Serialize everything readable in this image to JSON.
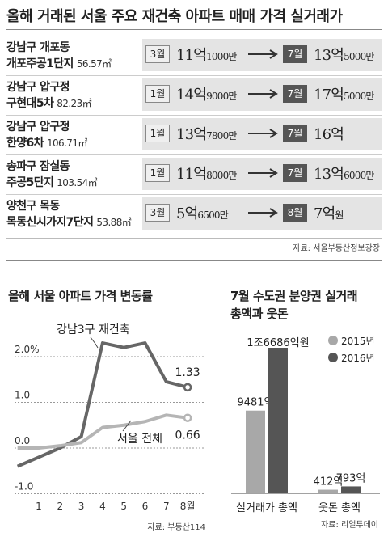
{
  "table": {
    "title": "올해 거래된 서울 주요 재건축 아파트 매매 가격 실거래가",
    "rows": [
      {
        "district": "강남구 개포동",
        "complex": "개포주공1단지",
        "area": "56.57㎡",
        "before_month": "3월",
        "before_main": "11억",
        "before_sub": "1000만",
        "after_month": "7월",
        "after_main": "13억",
        "after_sub": "5000만"
      },
      {
        "district": "강남구 압구정",
        "complex": "구현대5차",
        "area": "82.23㎡",
        "before_month": "1월",
        "before_main": "14억",
        "before_sub": "9000만",
        "after_month": "7월",
        "after_main": "17억",
        "after_sub": "5000만"
      },
      {
        "district": "강남구 압구정",
        "complex": "한양6차",
        "area": "106.71㎡",
        "before_month": "1월",
        "before_main": "13억",
        "before_sub": "7800만",
        "after_month": "7월",
        "after_main": "16억",
        "after_sub": ""
      },
      {
        "district": "송파구 잠실동",
        "complex": "주공5단지",
        "area": "103.54㎡",
        "before_month": "1월",
        "before_main": "11억",
        "before_sub": "8000만",
        "after_month": "7월",
        "after_main": "13억",
        "after_sub": "6000만"
      },
      {
        "district": "양천구 목동",
        "complex": "목동신시가지7단지",
        "area": "53.88㎡",
        "before_month": "3월",
        "before_main": "5억",
        "before_sub": "6500만",
        "after_month": "8월",
        "after_main": "7억",
        "after_sub": "원"
      }
    ],
    "source": "자료: 서울부동산정보광장"
  },
  "chart_data": [
    {
      "type": "line",
      "title": "올해 서울 아파트 가격 변동률",
      "x": [
        1,
        2,
        3,
        4,
        5,
        6,
        7,
        8
      ],
      "x_tick_labels": [
        "1",
        "2",
        "3",
        "4",
        "5",
        "6",
        "7",
        "8월"
      ],
      "y_ticks": [
        2.0,
        1.0,
        0.0,
        -1.0
      ],
      "y_tick_labels": [
        "2.0%",
        "1.0",
        "0.0",
        "-1.0"
      ],
      "ylim": [
        -1.0,
        2.5
      ],
      "series": [
        {
          "name": "강남3구 재건축",
          "color": "#666666",
          "end_label": "1.33",
          "x": [
            0,
            1,
            2,
            3,
            4,
            5,
            6,
            7,
            8
          ],
          "values": [
            -0.4,
            -0.2,
            0.0,
            0.25,
            2.3,
            2.2,
            2.3,
            1.45,
            1.33
          ]
        },
        {
          "name": "서울 전체",
          "color": "#b5b5b5",
          "end_label": "0.66",
          "x": [
            0,
            1,
            2,
            3,
            4,
            5,
            6,
            7,
            8
          ],
          "values": [
            0.0,
            0.0,
            0.05,
            0.12,
            0.45,
            0.5,
            0.58,
            0.72,
            0.66
          ]
        }
      ],
      "source": "자료: 부동산114"
    },
    {
      "type": "bar",
      "title_line1": "7월 수도권 분양권 실거래",
      "title_line2": "총액과 웃돈",
      "categories": [
        "실거래가 총액",
        "웃돈 총액"
      ],
      "series": [
        {
          "name": "2015년",
          "color": "#a8a8a8",
          "values": [
            9481,
            412
          ],
          "labels": [
            "9481억",
            "412억"
          ]
        },
        {
          "name": "2016년",
          "color": "#555555",
          "values": [
            16686,
            793
          ],
          "labels": [
            "1조6686억원",
            "793억"
          ]
        }
      ],
      "source": "자료: 리얼투데이"
    }
  ]
}
